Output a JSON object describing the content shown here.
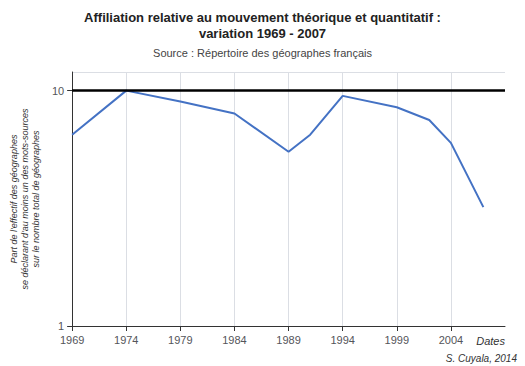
{
  "chart_data": {
    "type": "line",
    "title": "Affiliation relative au mouvement théorique et quantitatif :\nvariation 1969 - 2007",
    "subtitle": "Source : Répertoire des géographes français",
    "xlabel": "Dates",
    "ylabel": "Part de l'effectif des géographes\nse déclarant d'au moins un des mots-sources\nsur le nombre total de géographes",
    "annotations": [
      "S. Cuyala, 2014"
    ],
    "x": [
      1969,
      1974,
      1979,
      1984,
      1989,
      1991,
      1994,
      1999,
      2002,
      2004,
      2007
    ],
    "values": [
      6.5,
      10.0,
      9.0,
      8.0,
      5.5,
      6.5,
      9.5,
      8.5,
      7.5,
      6.0,
      3.2
    ],
    "color": "#4472C4",
    "hline": {
      "y": 10,
      "color": "#000000"
    },
    "xlim": [
      1969,
      2009
    ],
    "xticks": [
      1969,
      1974,
      1979,
      1984,
      1989,
      1994,
      1999,
      2004
    ],
    "ylim": [
      1,
      12
    ],
    "yticks": [
      1,
      10
    ],
    "log": "y",
    "grid": true
  }
}
